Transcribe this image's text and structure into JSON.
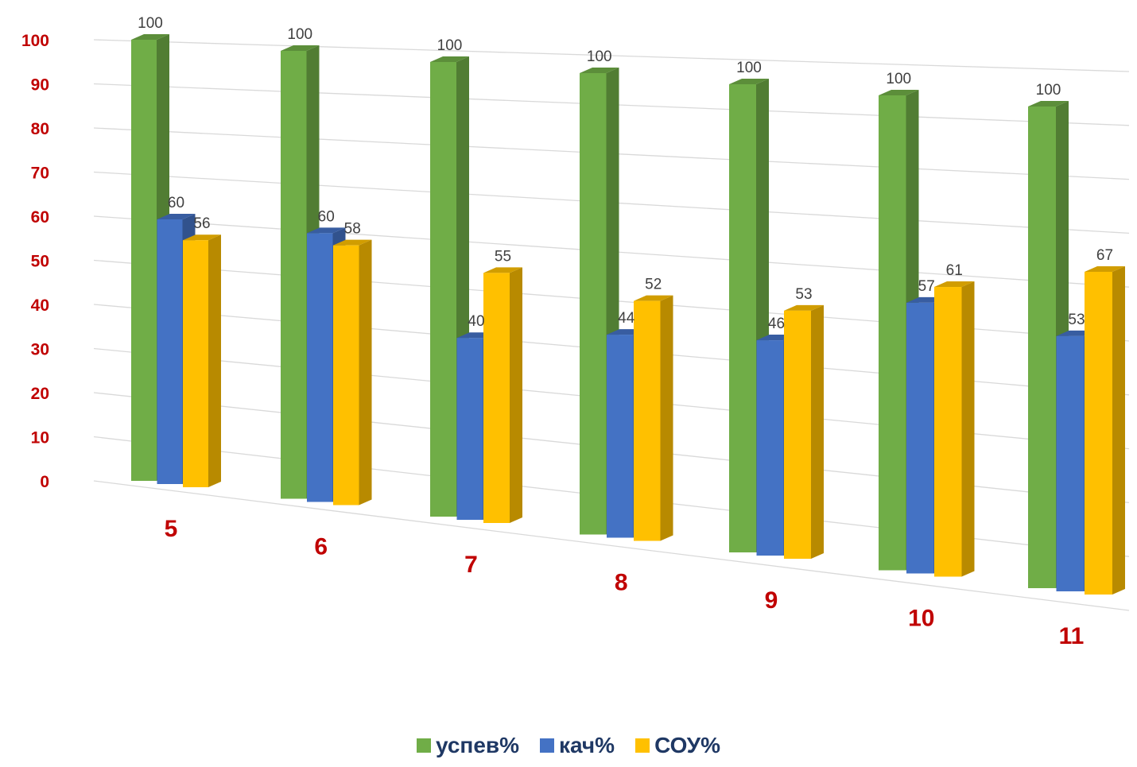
{
  "chart_data": {
    "type": "bar",
    "categories": [
      "5",
      "6",
      "7",
      "8",
      "9",
      "10",
      "11"
    ],
    "series": [
      {
        "name": "успев%",
        "color": "#70ad47",
        "values": [
          100,
          100,
          100,
          100,
          100,
          100,
          100
        ]
      },
      {
        "name": "кач%",
        "color": "#4472c4",
        "values": [
          60,
          60,
          40,
          44,
          46,
          57,
          53
        ]
      },
      {
        "name": "СОУ%",
        "color": "#ffc000",
        "values": [
          56,
          58,
          55,
          52,
          53,
          61,
          67
        ]
      }
    ],
    "y_ticks": [
      "0",
      "10",
      "20",
      "30",
      "40",
      "50",
      "60",
      "70",
      "80",
      "90",
      "100"
    ],
    "ylim": [
      0,
      100
    ],
    "grid": true,
    "legend_position": "bottom",
    "tick_label_color": "#c00000",
    "legend_text_color": "#1f3864"
  }
}
